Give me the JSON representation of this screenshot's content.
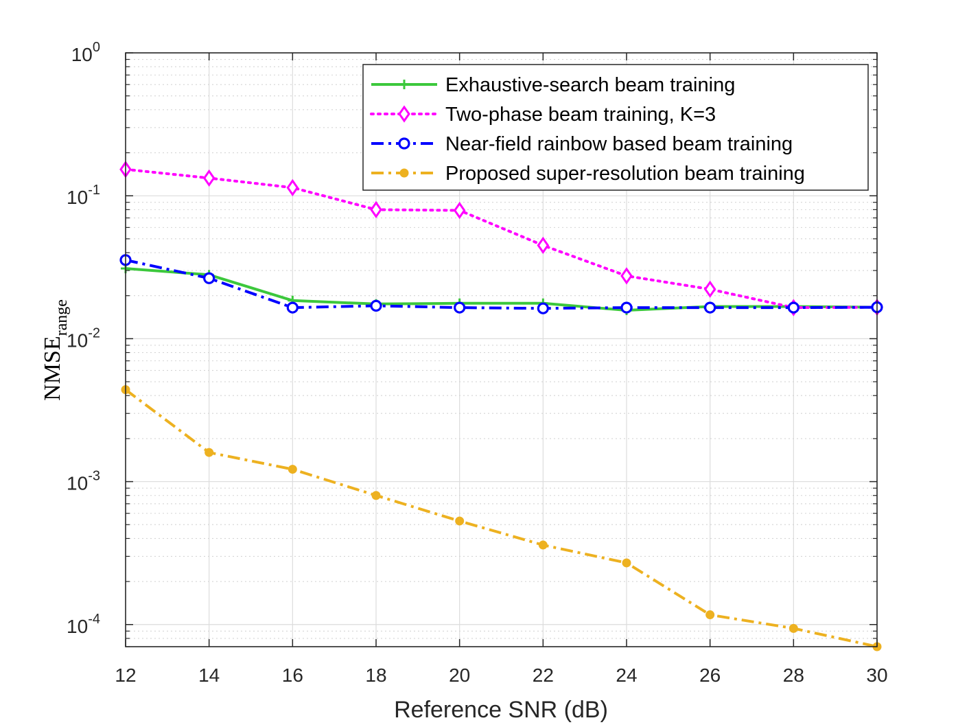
{
  "chart_data": {
    "type": "line",
    "xscale": "linear",
    "yscale": "log",
    "xlim": [
      12,
      30
    ],
    "ylim": [
      7e-05,
      1
    ],
    "xticks": [
      "12",
      "14",
      "16",
      "18",
      "20",
      "22",
      "24",
      "26",
      "28",
      "30"
    ],
    "yticks": [
      {
        "base": "10",
        "exp": "0",
        "value": 1
      },
      {
        "base": "10",
        "exp": "-1",
        "value": 0.1
      },
      {
        "base": "10",
        "exp": "-2",
        "value": 0.01
      },
      {
        "base": "10",
        "exp": "-3",
        "value": 0.001
      },
      {
        "base": "10",
        "exp": "-4",
        "value": 0.0001
      }
    ],
    "xlabel": "Reference SNR (dB)",
    "ylabel_main": "NMSE",
    "ylabel_sub": "range",
    "grid": true,
    "legend_position": "top-right",
    "x": [
      12,
      14,
      16,
      18,
      20,
      22,
      24,
      26,
      28,
      30
    ],
    "series": [
      {
        "name": "Exhaustive-search beam training",
        "color": "#3cc83c",
        "dash": "solid",
        "marker": "plus",
        "values": [
          0.031,
          0.028,
          0.0185,
          0.0175,
          0.0177,
          0.0177,
          0.0158,
          0.0168,
          0.0168,
          0.0166
        ]
      },
      {
        "name": "Two-phase beam training, K=3",
        "color": "#ff00ff",
        "dash": "dotted",
        "marker": "diamond",
        "values": [
          0.153,
          0.133,
          0.114,
          0.08,
          0.079,
          0.045,
          0.0275,
          0.0222,
          0.0165,
          0.0166
        ]
      },
      {
        "name": "Near-field rainbow based beam training",
        "color": "#0000ff",
        "dash": "dashdot",
        "marker": "circle",
        "values": [
          0.0355,
          0.0265,
          0.0165,
          0.017,
          0.0165,
          0.0163,
          0.0165,
          0.0165,
          0.0165,
          0.0166
        ]
      },
      {
        "name": "Proposed super-resolution beam training",
        "color": "#edb120",
        "dash": "dashdot",
        "marker": "dot",
        "values": [
          0.0044,
          0.0016,
          0.00122,
          0.0008,
          0.00053,
          0.00036,
          0.00027,
          0.000117,
          9.4e-05,
          7e-05
        ]
      }
    ]
  }
}
